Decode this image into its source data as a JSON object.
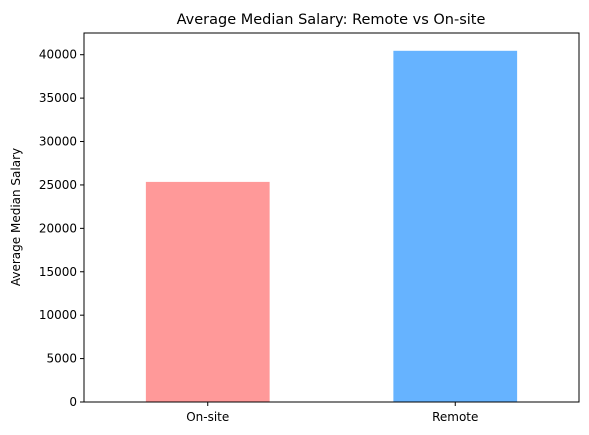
{
  "chart_data": {
    "type": "bar",
    "title": "Average Median Salary: Remote vs On-site",
    "xlabel": "",
    "ylabel": "Average Median Salary",
    "categories": [
      "On-site",
      "Remote"
    ],
    "values": [
      25350,
      40450
    ],
    "colors": [
      "#ff9999",
      "#66b3ff"
    ],
    "ylim": [
      0,
      42500
    ],
    "yticks": [
      0,
      5000,
      10000,
      15000,
      20000,
      25000,
      30000,
      35000,
      40000
    ],
    "ytick_labels": [
      "0",
      "5000",
      "10000",
      "15000",
      "20000",
      "25000",
      "30000",
      "35000",
      "40000"
    ],
    "grid": false,
    "legend": "none"
  }
}
